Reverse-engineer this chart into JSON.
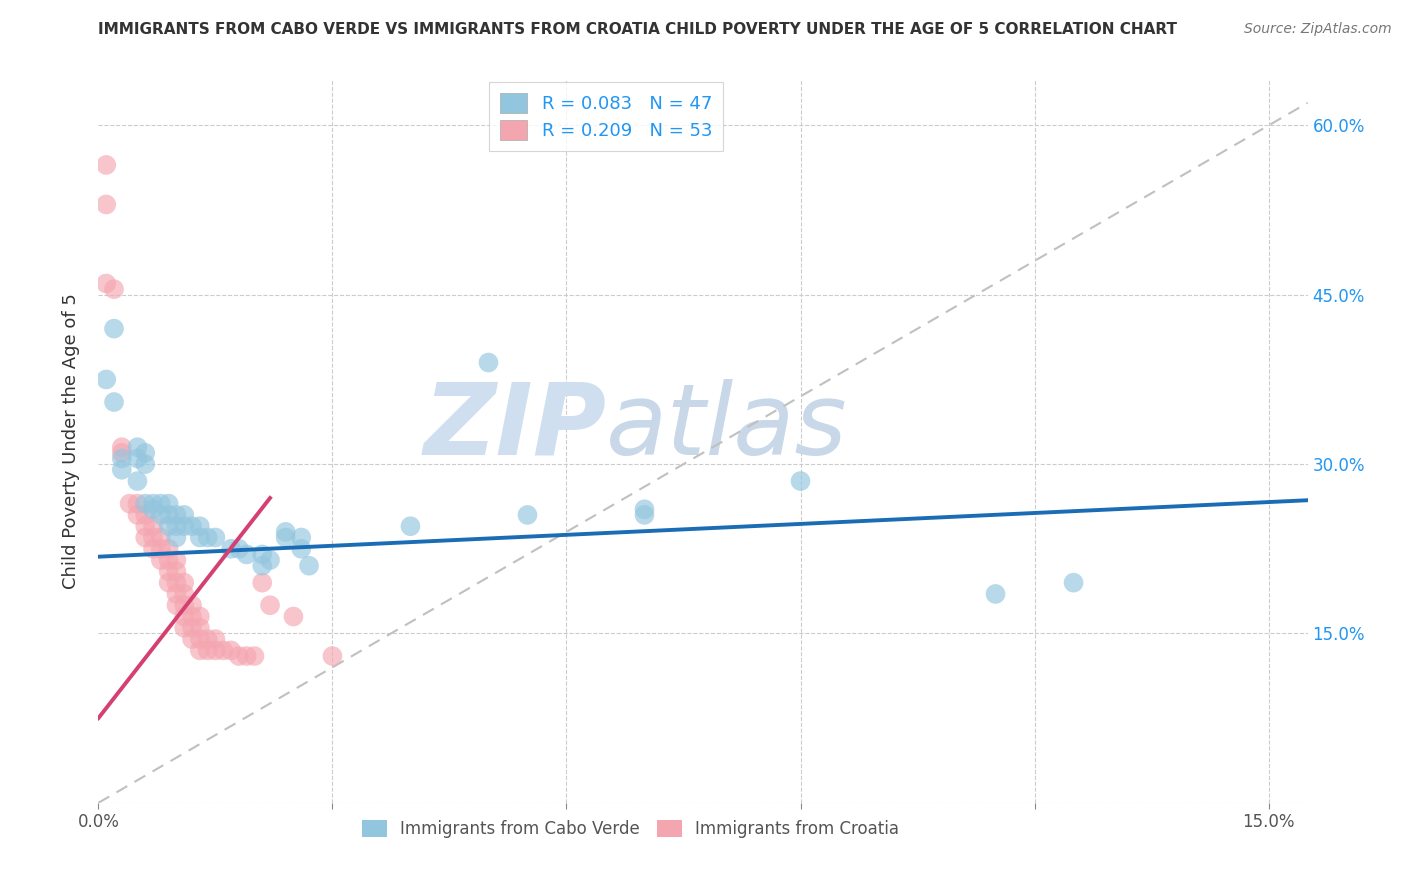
{
  "title": "IMMIGRANTS FROM CABO VERDE VS IMMIGRANTS FROM CROATIA CHILD POVERTY UNDER THE AGE OF 5 CORRELATION CHART",
  "source": "Source: ZipAtlas.com",
  "ylabel": "Child Poverty Under the Age of 5",
  "xlim": [
    0.0,
    0.155
  ],
  "ylim": [
    0.0,
    0.64
  ],
  "cabo_verde_R": 0.083,
  "cabo_verde_N": 47,
  "croatia_R": 0.209,
  "croatia_N": 53,
  "cabo_verde_color": "#92c5de",
  "croatia_color": "#f4a6b0",
  "cabo_verde_scatter": [
    [
      0.001,
      0.375
    ],
    [
      0.002,
      0.42
    ],
    [
      0.002,
      0.355
    ],
    [
      0.003,
      0.305
    ],
    [
      0.003,
      0.295
    ],
    [
      0.005,
      0.315
    ],
    [
      0.005,
      0.305
    ],
    [
      0.005,
      0.285
    ],
    [
      0.006,
      0.31
    ],
    [
      0.006,
      0.3
    ],
    [
      0.006,
      0.265
    ],
    [
      0.007,
      0.265
    ],
    [
      0.007,
      0.26
    ],
    [
      0.008,
      0.265
    ],
    [
      0.008,
      0.255
    ],
    [
      0.009,
      0.265
    ],
    [
      0.009,
      0.255
    ],
    [
      0.009,
      0.245
    ],
    [
      0.01,
      0.255
    ],
    [
      0.01,
      0.245
    ],
    [
      0.01,
      0.235
    ],
    [
      0.011,
      0.255
    ],
    [
      0.011,
      0.245
    ],
    [
      0.012,
      0.245
    ],
    [
      0.013,
      0.245
    ],
    [
      0.013,
      0.235
    ],
    [
      0.014,
      0.235
    ],
    [
      0.015,
      0.235
    ],
    [
      0.017,
      0.225
    ],
    [
      0.018,
      0.225
    ],
    [
      0.019,
      0.22
    ],
    [
      0.021,
      0.22
    ],
    [
      0.021,
      0.21
    ],
    [
      0.022,
      0.215
    ],
    [
      0.024,
      0.24
    ],
    [
      0.024,
      0.235
    ],
    [
      0.026,
      0.235
    ],
    [
      0.026,
      0.225
    ],
    [
      0.027,
      0.21
    ],
    [
      0.04,
      0.245
    ],
    [
      0.05,
      0.39
    ],
    [
      0.055,
      0.255
    ],
    [
      0.07,
      0.26
    ],
    [
      0.07,
      0.255
    ],
    [
      0.09,
      0.285
    ],
    [
      0.115,
      0.185
    ],
    [
      0.125,
      0.195
    ]
  ],
  "croatia_scatter": [
    [
      0.001,
      0.565
    ],
    [
      0.001,
      0.53
    ],
    [
      0.001,
      0.46
    ],
    [
      0.002,
      0.455
    ],
    [
      0.003,
      0.315
    ],
    [
      0.003,
      0.31
    ],
    [
      0.004,
      0.265
    ],
    [
      0.005,
      0.265
    ],
    [
      0.005,
      0.255
    ],
    [
      0.006,
      0.255
    ],
    [
      0.006,
      0.245
    ],
    [
      0.006,
      0.235
    ],
    [
      0.007,
      0.245
    ],
    [
      0.007,
      0.235
    ],
    [
      0.007,
      0.225
    ],
    [
      0.008,
      0.235
    ],
    [
      0.008,
      0.225
    ],
    [
      0.008,
      0.215
    ],
    [
      0.009,
      0.225
    ],
    [
      0.009,
      0.215
    ],
    [
      0.009,
      0.205
    ],
    [
      0.009,
      0.195
    ],
    [
      0.01,
      0.215
    ],
    [
      0.01,
      0.205
    ],
    [
      0.01,
      0.195
    ],
    [
      0.01,
      0.185
    ],
    [
      0.01,
      0.175
    ],
    [
      0.011,
      0.195
    ],
    [
      0.011,
      0.185
    ],
    [
      0.011,
      0.175
    ],
    [
      0.011,
      0.165
    ],
    [
      0.011,
      0.155
    ],
    [
      0.012,
      0.175
    ],
    [
      0.012,
      0.165
    ],
    [
      0.012,
      0.155
    ],
    [
      0.012,
      0.145
    ],
    [
      0.013,
      0.165
    ],
    [
      0.013,
      0.155
    ],
    [
      0.013,
      0.145
    ],
    [
      0.013,
      0.135
    ],
    [
      0.014,
      0.145
    ],
    [
      0.014,
      0.135
    ],
    [
      0.015,
      0.145
    ],
    [
      0.015,
      0.135
    ],
    [
      0.016,
      0.135
    ],
    [
      0.017,
      0.135
    ],
    [
      0.018,
      0.13
    ],
    [
      0.019,
      0.13
    ],
    [
      0.02,
      0.13
    ],
    [
      0.021,
      0.195
    ],
    [
      0.022,
      0.175
    ],
    [
      0.025,
      0.165
    ],
    [
      0.03,
      0.13
    ]
  ],
  "watermark_top": "ZIP",
  "watermark_bottom": "atlas",
  "watermark_color": "#d0dff0",
  "watermark_color2": "#c8d8e8",
  "legend_label_1": "Immigrants from Cabo Verde",
  "legend_label_2": "Immigrants from Croatia",
  "trendline_cabo_verde": [
    [
      0.0,
      0.218
    ],
    [
      0.155,
      0.268
    ]
  ],
  "trendline_croatia": [
    [
      0.0,
      0.075
    ],
    [
      0.022,
      0.27
    ]
  ],
  "trendline_dashed": [
    [
      0.0,
      0.0
    ],
    [
      0.155,
      0.62
    ]
  ],
  "cabo_verde_line_color": "#1a6db5",
  "croatia_line_color": "#d44070",
  "dashed_line_color": "#c0c0c0",
  "right_tick_color": "#2196F3"
}
